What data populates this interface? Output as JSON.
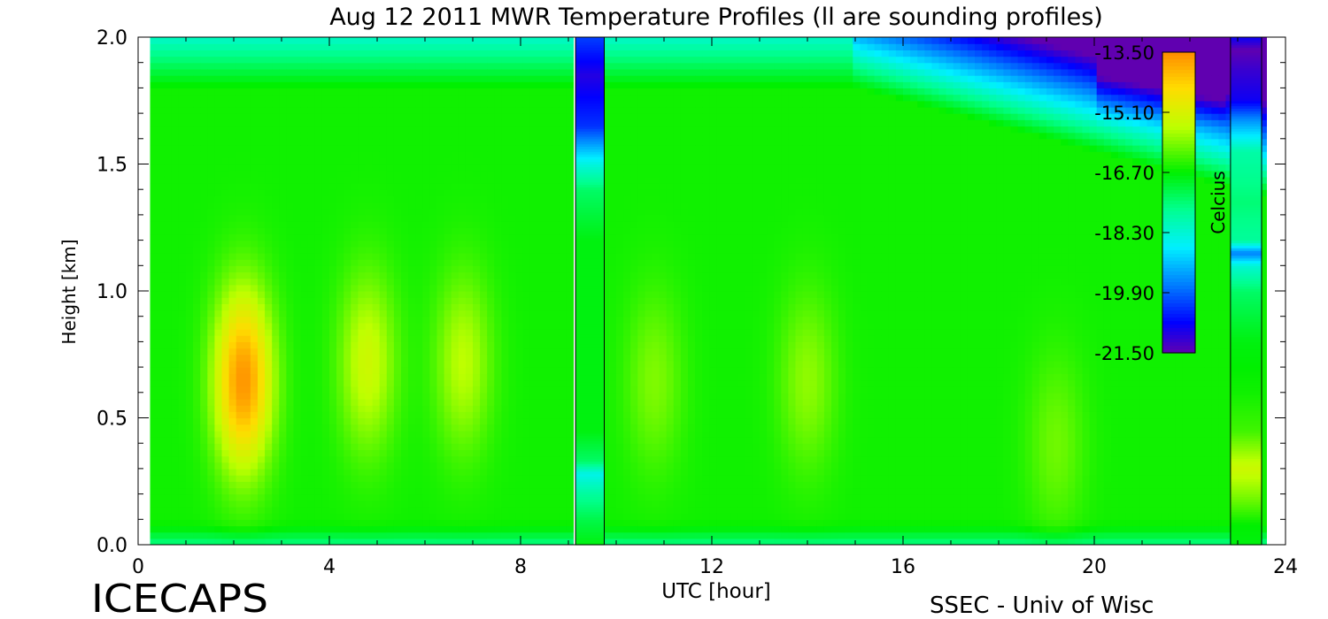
{
  "chart_data": {
    "type": "heatmap",
    "title": "Aug 12 2011 MWR Temperature Profiles (ll are sounding profiles)",
    "xlabel": "UTC [hour]",
    "ylabel": "Height [km]",
    "xlim": [
      0,
      24
    ],
    "ylim": [
      0,
      2
    ],
    "x_ticks": [
      "0",
      "4",
      "8",
      "12",
      "16",
      "20",
      "24"
    ],
    "y_ticks": [
      "0.0",
      "0.5",
      "1.0",
      "1.5",
      "2.0"
    ],
    "colorbar": {
      "label": "Celcius",
      "ticks": [
        "-13.50",
        "-15.10",
        "-16.70",
        "-18.30",
        "-19.90",
        "-21.50"
      ],
      "range": [
        -21.5,
        -13.5
      ]
    },
    "data_extent_hours": [
      0.25,
      23.6
    ],
    "sounding_profiles": [
      {
        "start_hour": 9.15,
        "end_hour": 9.75,
        "temps_by_height_km": [
          [
            0.0,
            -16.8
          ],
          [
            0.1,
            -17.2
          ],
          [
            0.2,
            -17.8
          ],
          [
            0.28,
            -18.5
          ],
          [
            0.33,
            -17.4
          ],
          [
            0.45,
            -16.8
          ],
          [
            0.8,
            -16.8
          ],
          [
            1.2,
            -16.8
          ],
          [
            1.4,
            -17.4
          ],
          [
            1.5,
            -18.4
          ],
          [
            1.65,
            -20.3
          ],
          [
            1.85,
            -21.0
          ],
          [
            2.0,
            -20.2
          ]
        ]
      },
      {
        "start_hour": 22.85,
        "end_hour": 23.5,
        "temps_by_height_km": [
          [
            0.0,
            -16.8
          ],
          [
            0.08,
            -16.7
          ],
          [
            0.18,
            -16.0
          ],
          [
            0.3,
            -15.3
          ],
          [
            0.45,
            -16.3
          ],
          [
            0.6,
            -16.6
          ],
          [
            0.8,
            -16.8
          ],
          [
            1.0,
            -17.4
          ],
          [
            1.1,
            -18.3
          ],
          [
            1.15,
            -19.7
          ],
          [
            1.2,
            -17.8
          ],
          [
            1.35,
            -17.5
          ],
          [
            1.55,
            -17.9
          ],
          [
            1.68,
            -19.6
          ],
          [
            1.75,
            -20.8
          ],
          [
            1.88,
            -21.2
          ],
          [
            1.95,
            -21.5
          ],
          [
            2.0,
            -20.8
          ]
        ]
      }
    ],
    "grid": false
  },
  "branding": {
    "left": "ICECAPS",
    "right": "SSEC - Univ of Wisc"
  }
}
